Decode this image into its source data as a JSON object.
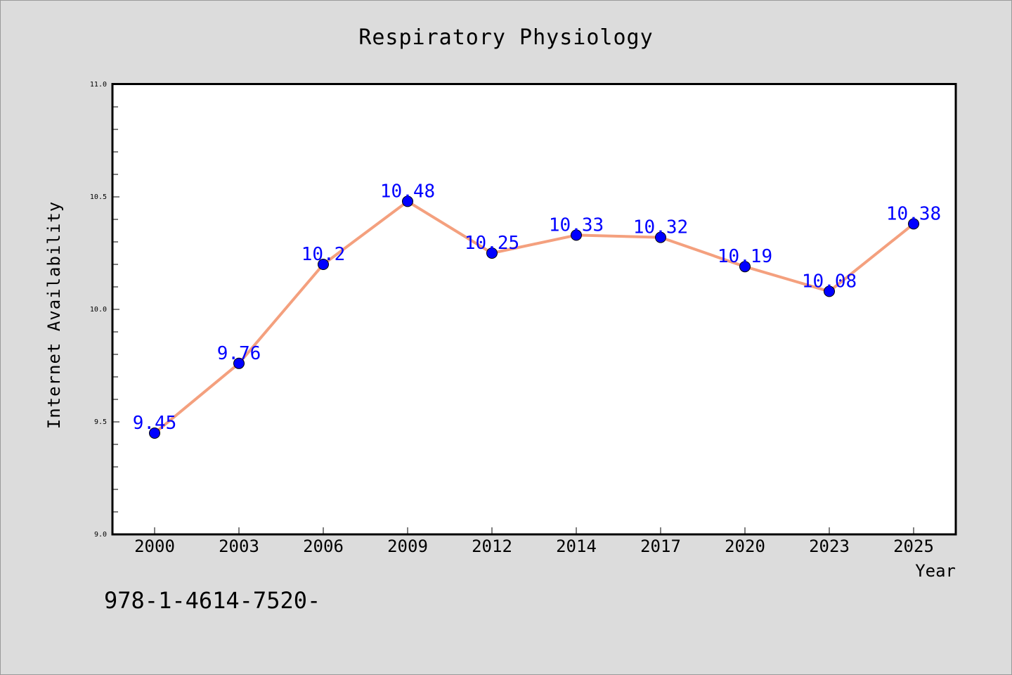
{
  "chart_data": {
    "type": "line",
    "title": "Respiratory Physiology",
    "xlabel": "Year",
    "ylabel": "Internet Availability",
    "categories": [
      "2000",
      "2003",
      "2006",
      "2009",
      "2012",
      "2014",
      "2017",
      "2020",
      "2023",
      "2025"
    ],
    "values": [
      9.45,
      9.76,
      10.2,
      10.48,
      10.25,
      10.33,
      10.32,
      10.19,
      10.08,
      10.38
    ],
    "data_labels": [
      "9.45",
      "9.76",
      "10.2",
      "10.48",
      "10.25",
      "10.33",
      "10.32",
      "10.19",
      "10.08",
      "10.38"
    ],
    "ylim": [
      9.0,
      11.0
    ],
    "y_ticks": [
      "9.0",
      "9.5",
      "10.0",
      "10.5",
      "11.0"
    ],
    "grid": false,
    "line_color": "#f4a07e",
    "marker_color": "#0000ff",
    "label_color": "#0000ff",
    "plot_background": "#ffffff",
    "figure_background": "#dcdcdc"
  },
  "footer": {
    "text": "978-1-4614-7520-"
  }
}
